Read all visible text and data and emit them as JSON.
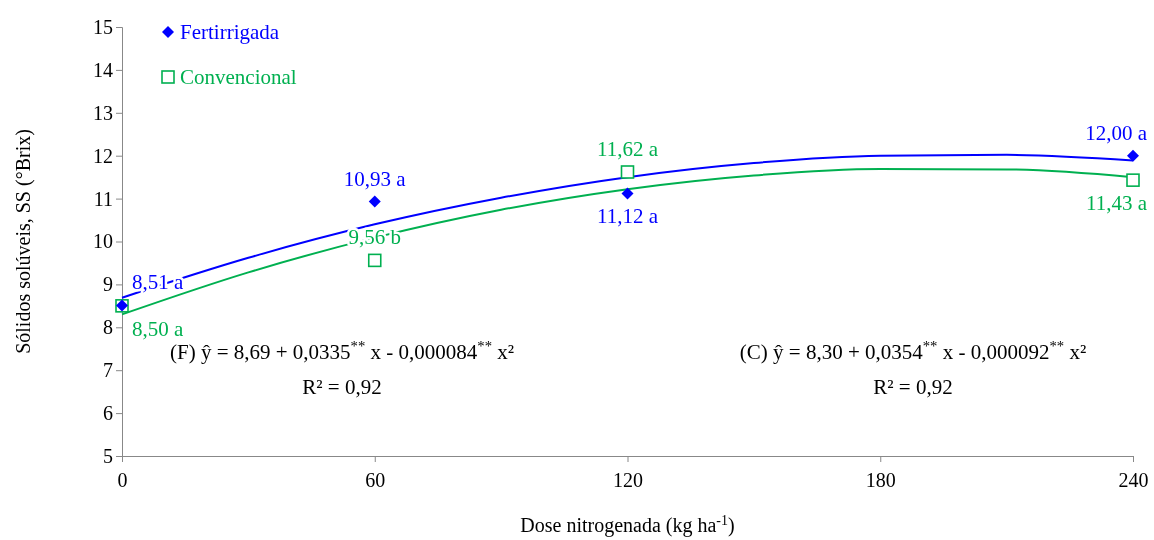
{
  "chart_data": {
    "type": "scatter",
    "xlabel": "Dose nitrogenada (kg ha$^{-1}$)",
    "ylabel": "Sólidos solúveis, SS (°Brix)",
    "x": [
      0,
      60,
      120,
      240
    ],
    "xlim": [
      0,
      240
    ],
    "xticks": [
      0,
      60,
      120,
      180,
      240
    ],
    "ylim": [
      5,
      15
    ],
    "yticks": [
      5,
      6,
      7,
      8,
      9,
      10,
      11,
      12,
      13,
      14,
      15
    ],
    "grid": false,
    "legend": "top left",
    "series": [
      {
        "name": "Fertirrigada",
        "color": "#0000ff",
        "marker": "diamond",
        "values": [
          8.51,
          10.93,
          11.12,
          12.0
        ],
        "value_labels": [
          "8,51 a",
          "10,93 a",
          "11,12 a",
          "12,00 a"
        ]
      },
      {
        "name": "Convencional",
        "color": "#00b050",
        "marker": "square",
        "values": [
          8.5,
          9.56,
          11.62,
          11.43
        ],
        "value_labels": [
          "8,50 a",
          "9,56 b",
          "11,62 a",
          "11,43 a"
        ]
      },
      {
        "type": "line",
        "color": "#0000ff",
        "marker": "none",
        "x": [
          0,
          30,
          60,
          90,
          120,
          150,
          180,
          210,
          240
        ],
        "values": [
          8.69,
          9.62,
          10.4,
          11.02,
          11.5,
          11.83,
          12.0,
          12.02,
          11.89
        ]
      },
      {
        "type": "line",
        "color": "#00b050",
        "marker": "none",
        "x": [
          0,
          30,
          60,
          90,
          120,
          150,
          180,
          210,
          240
        ],
        "values": [
          8.3,
          9.28,
          10.09,
          10.74,
          11.22,
          11.54,
          11.69,
          11.68,
          11.5
        ]
      }
    ],
    "annotations": [
      "(F) ŷ = 8,69 + 0,0335$^{**}$ x - 0,000084$^{**}$ x²",
      "R² = 0,92",
      "(C) ŷ = 8,30 + 0,0354$^{**}$ x - 0,000092$^{**}$ x²",
      "R² = 0,92"
    ]
  }
}
